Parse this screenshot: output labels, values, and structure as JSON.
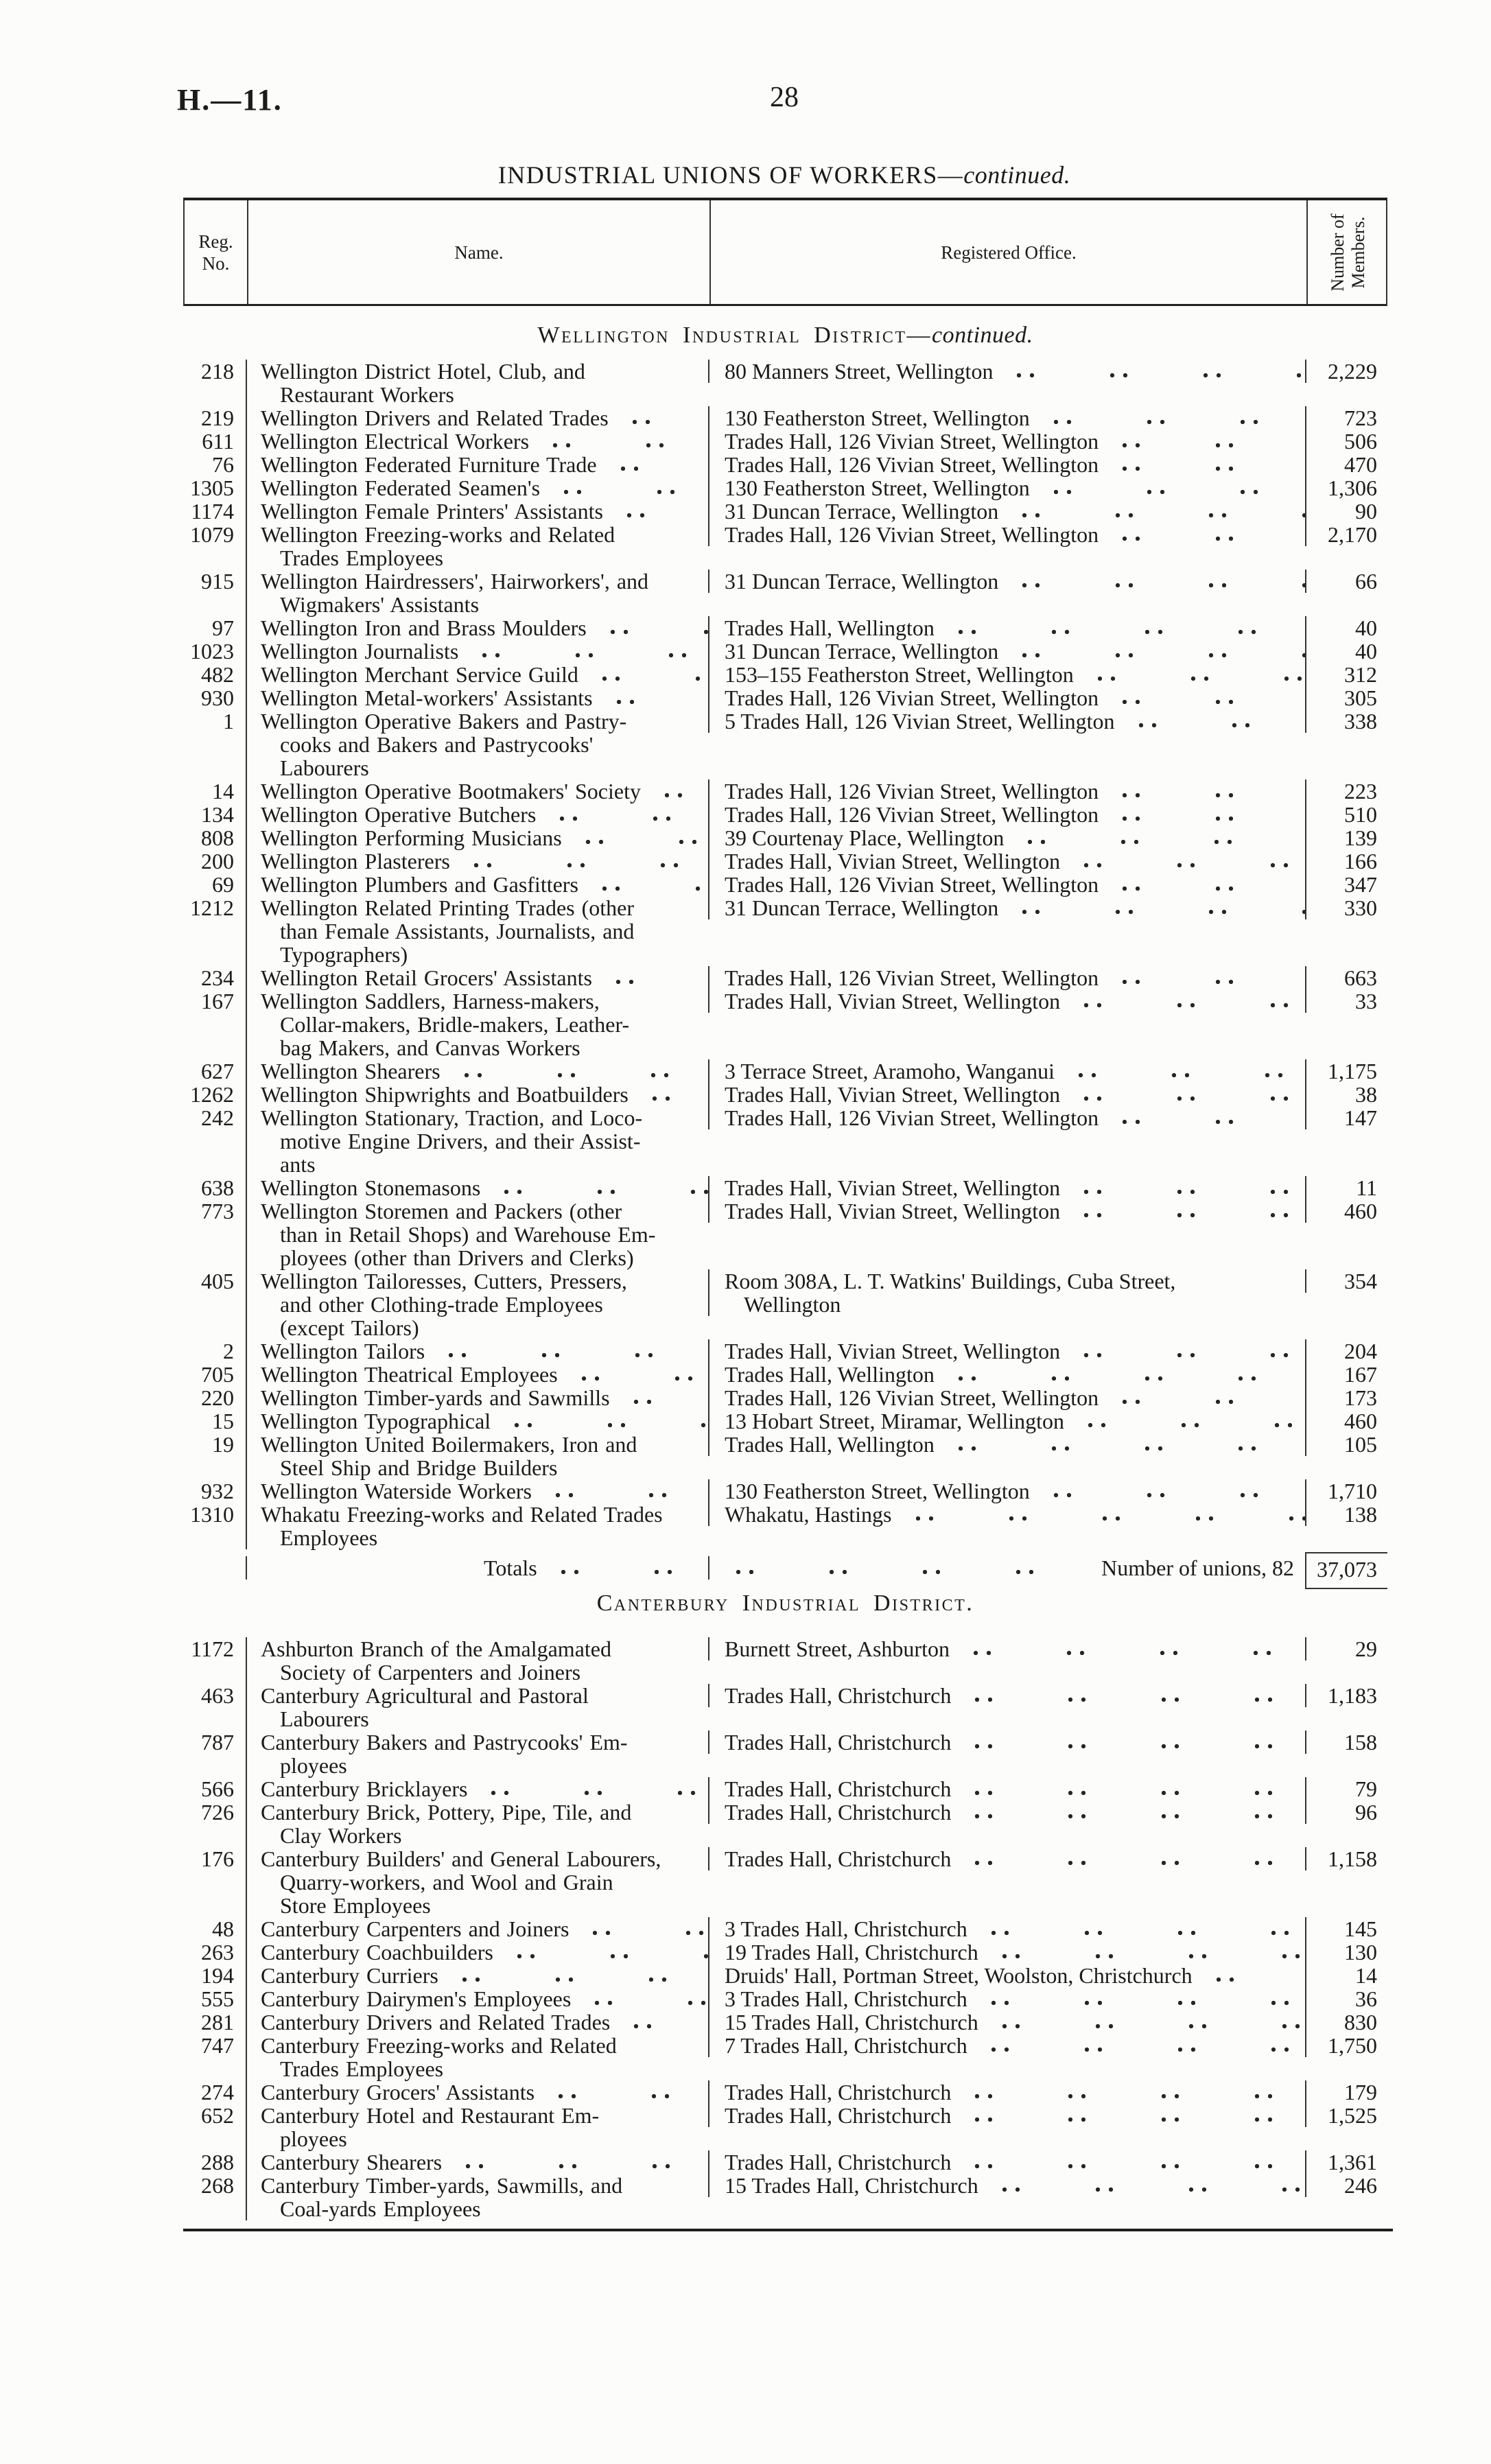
{
  "page": {
    "doc_code": "H.—11.",
    "page_number": "28"
  },
  "title": {
    "main": "INDUSTRIAL UNIONS OF WORKERS—",
    "continued": "continued."
  },
  "table_header": {
    "reg": "Reg.\nNo.",
    "name": "Name.",
    "office": "Registered Office.",
    "members": "Number of\nMembers."
  },
  "sections": [
    {
      "heading": {
        "main": "Wellington Industrial District—",
        "continued": "continued."
      },
      "rows": [
        {
          "reg": "218",
          "name": "Wellington District Hotel, Club, and\nRestaurant Workers",
          "office": "80 Manners Street, Wellington",
          "members": "2,229"
        },
        {
          "reg": "219",
          "name": "Wellington Drivers and Related Trades",
          "office": "130 Featherston Street, Wellington",
          "members": "723"
        },
        {
          "reg": "611",
          "name": "Wellington Electrical Workers",
          "office": "Trades Hall, 126 Vivian Street, Wellington",
          "members": "506"
        },
        {
          "reg": "76",
          "name": "Wellington Federated Furniture Trade",
          "office": "Trades Hall, 126 Vivian Street, Wellington",
          "members": "470"
        },
        {
          "reg": "1305",
          "name": "Wellington Federated Seamen's",
          "office": "130 Featherston Street, Wellington",
          "members": "1,306"
        },
        {
          "reg": "1174",
          "name": "Wellington Female Printers' Assistants",
          "office": "31 Duncan Terrace, Wellington",
          "members": "90"
        },
        {
          "reg": "1079",
          "name": "Wellington Freezing-works and Related\nTrades Employees",
          "office": "Trades Hall, 126 Vivian Street, Wellington",
          "members": "2,170"
        },
        {
          "reg": "915",
          "name": "Wellington Hairdressers', Hairworkers', and\nWigmakers' Assistants",
          "office": "31 Duncan Terrace, Wellington",
          "members": "66"
        },
        {
          "reg": "97",
          "name": "Wellington Iron and Brass Moulders",
          "office": "Trades Hall, Wellington",
          "members": "40"
        },
        {
          "reg": "1023",
          "name": "Wellington Journalists",
          "office": "31 Duncan Terrace, Wellington",
          "members": "40"
        },
        {
          "reg": "482",
          "name": "Wellington Merchant Service Guild",
          "office": "153–155 Featherston Street, Wellington",
          "members": "312"
        },
        {
          "reg": "930",
          "name": "Wellington Metal-workers' Assistants",
          "office": "Trades Hall, 126 Vivian Street, Wellington",
          "members": "305"
        },
        {
          "reg": "1",
          "name": "Wellington Operative Bakers and Pastry-\ncooks and Bakers and Pastrycooks'\nLabourers",
          "office": "5 Trades Hall, 126 Vivian Street, Wellington",
          "members": "338"
        },
        {
          "reg": "14",
          "name": "Wellington Operative Bootmakers' Society",
          "office": "Trades Hall, 126 Vivian Street, Wellington",
          "members": "223"
        },
        {
          "reg": "134",
          "name": "Wellington Operative Butchers",
          "office": "Trades Hall, 126 Vivian Street, Wellington",
          "members": "510"
        },
        {
          "reg": "808",
          "name": "Wellington Performing Musicians",
          "office": "39 Courtenay Place, Wellington",
          "members": "139"
        },
        {
          "reg": "200",
          "name": "Wellington Plasterers",
          "office": "Trades Hall, Vivian Street, Wellington",
          "members": "166"
        },
        {
          "reg": "69",
          "name": "Wellington Plumbers and Gasfitters",
          "office": "Trades Hall, 126 Vivian Street, Wellington",
          "members": "347"
        },
        {
          "reg": "1212",
          "name": "Wellington Related Printing Trades (other\nthan Female Assistants, Journalists, and\nTypographers)",
          "office": "31 Duncan Terrace, Wellington",
          "members": "330"
        },
        {
          "reg": "234",
          "name": "Wellington Retail Grocers' Assistants",
          "office": "Trades Hall, 126 Vivian Street, Wellington",
          "members": "663"
        },
        {
          "reg": "167",
          "name": "Wellington Saddlers, Harness-makers,\nCollar-makers, Bridle-makers, Leather-\nbag Makers, and Canvas Workers",
          "office": "Trades Hall, Vivian Street, Wellington",
          "members": "33"
        },
        {
          "reg": "627",
          "name": "Wellington Shearers",
          "office": "3 Terrace Street, Aramoho, Wanganui",
          "members": "1,175"
        },
        {
          "reg": "1262",
          "name": "Wellington Shipwrights and Boatbuilders",
          "office": "Trades Hall, Vivian Street, Wellington",
          "members": "38"
        },
        {
          "reg": "242",
          "name": "Wellington Stationary, Traction, and Loco-\nmotive Engine Drivers, and their Assist-\nants",
          "office": "Trades Hall, 126 Vivian Street, Wellington",
          "members": "147"
        },
        {
          "reg": "638",
          "name": "Wellington Stonemasons",
          "office": "Trades Hall, Vivian Street, Wellington",
          "members": "11"
        },
        {
          "reg": "773",
          "name": "Wellington Storemen and Packers (other\nthan in Retail Shops) and Warehouse Em-\nployees (other than Drivers and Clerks)",
          "office": "Trades Hall, Vivian Street, Wellington",
          "members": "460"
        },
        {
          "reg": "405",
          "name": "Wellington Tailoresses, Cutters, Pressers,\nand other Clothing-trade Employees\n(except Tailors)",
          "office": "Room 308A, L. T. Watkins' Buildings, Cuba Street,\nWellington",
          "members": "354"
        },
        {
          "reg": "2",
          "name": "Wellington Tailors",
          "office": "Trades Hall, Vivian Street, Wellington",
          "members": "204"
        },
        {
          "reg": "705",
          "name": "Wellington Theatrical Employees",
          "office": "Trades Hall, Wellington",
          "members": "167"
        },
        {
          "reg": "220",
          "name": "Wellington Timber-yards and Sawmills",
          "office": "Trades Hall, 126 Vivian Street, Wellington",
          "members": "173"
        },
        {
          "reg": "15",
          "name": "Wellington Typographical",
          "office": "13 Hobart Street, Miramar, Wellington",
          "members": "460"
        },
        {
          "reg": "19",
          "name": "Wellington United Boilermakers, Iron and\nSteel Ship and Bridge Builders",
          "office": "Trades Hall, Wellington",
          "members": "105"
        },
        {
          "reg": "932",
          "name": "Wellington Waterside Workers",
          "office": "130 Featherston Street, Wellington",
          "members": "1,710"
        },
        {
          "reg": "1310",
          "name": "Whakatu Freezing-works and Related Trades\nEmployees",
          "office": "Whakatu, Hastings",
          "members": "138"
        }
      ],
      "totals": {
        "label": "Totals",
        "office_note": "Number of unions, 82",
        "members": "37,073"
      }
    },
    {
      "heading": {
        "main": "Canterbury Industrial District.",
        "continued": ""
      },
      "rows": [
        {
          "reg": "1172",
          "name": "Ashburton Branch of the Amalgamated\nSociety of Carpenters and Joiners",
          "office": "Burnett Street, Ashburton",
          "members": "29"
        },
        {
          "reg": "463",
          "name": "Canterbury Agricultural and Pastoral\nLabourers",
          "office": "Trades Hall, Christchurch",
          "members": "1,183"
        },
        {
          "reg": "787",
          "name": "Canterbury Bakers and Pastrycooks' Em-\nployees",
          "office": "Trades Hall, Christchurch",
          "members": "158"
        },
        {
          "reg": "566",
          "name": "Canterbury Bricklayers",
          "office": "Trades Hall, Christchurch",
          "members": "79"
        },
        {
          "reg": "726",
          "name": "Canterbury Brick, Pottery, Pipe, Tile, and\nClay Workers",
          "office": "Trades Hall, Christchurch",
          "members": "96"
        },
        {
          "reg": "176",
          "name": "Canterbury Builders' and General Labourers,\nQuarry-workers, and Wool and Grain\nStore Employees",
          "office": "Trades Hall, Christchurch",
          "members": "1,158"
        },
        {
          "reg": "48",
          "name": "Canterbury Carpenters and Joiners",
          "office": "3 Trades Hall, Christchurch",
          "members": "145"
        },
        {
          "reg": "263",
          "name": "Canterbury Coachbuilders",
          "office": "19 Trades Hall, Christchurch",
          "members": "130"
        },
        {
          "reg": "194",
          "name": "Canterbury Curriers",
          "office": "Druids' Hall, Portman Street, Woolston, Christchurch",
          "members": "14"
        },
        {
          "reg": "555",
          "name": "Canterbury Dairymen's Employees",
          "office": "3 Trades Hall, Christchurch",
          "members": "36"
        },
        {
          "reg": "281",
          "name": "Canterbury Drivers and Related Trades",
          "office": "15 Trades Hall, Christchurch",
          "members": "830"
        },
        {
          "reg": "747",
          "name": "Canterbury Freezing-works and Related\nTrades Employees",
          "office": "7 Trades Hall, Christchurch",
          "members": "1,750"
        },
        {
          "reg": "274",
          "name": "Canterbury Grocers' Assistants",
          "office": "Trades Hall, Christchurch",
          "members": "179"
        },
        {
          "reg": "652",
          "name": "Canterbury Hotel and Restaurant Em-\nployees",
          "office": "Trades Hall, Christchurch",
          "members": "1,525"
        },
        {
          "reg": "288",
          "name": "Canterbury Shearers",
          "office": "Trades Hall, Christchurch",
          "members": "1,361"
        },
        {
          "reg": "268",
          "name": "Canterbury Timber-yards, Sawmills, and\nCoal-yards Employees",
          "office": "15 Trades Hall, Christchurch",
          "members": "246"
        }
      ]
    }
  ]
}
